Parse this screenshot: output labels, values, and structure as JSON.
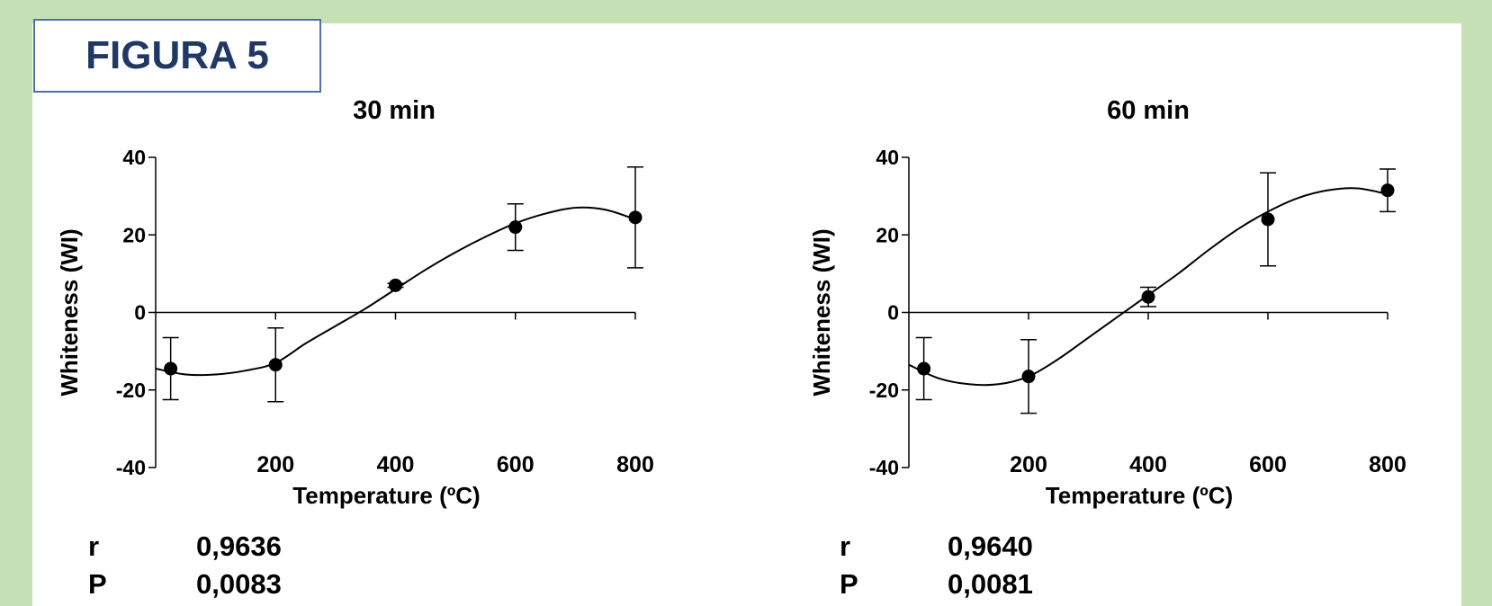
{
  "figure_label": "FIGURA 5",
  "chart_data": [
    {
      "type": "line",
      "title": "30 min",
      "xlabel": "Temperature (ºC)",
      "ylabel": "Whiteness (WI)",
      "xlim": [
        0,
        800
      ],
      "ylim": [
        -40,
        40
      ],
      "xticks": [
        200,
        400,
        600,
        800
      ],
      "yticks": [
        -40,
        -20,
        0,
        20,
        40
      ],
      "points": {
        "x": [
          25,
          200,
          400,
          600,
          800
        ],
        "y": [
          -14.5,
          -13.5,
          7,
          22,
          24.5
        ],
        "err": [
          8,
          9.5,
          0.5,
          6,
          13
        ]
      },
      "fit_curve": {
        "x": [
          0,
          50,
          100,
          150,
          200,
          250,
          300,
          350,
          400,
          450,
          500,
          550,
          600,
          650,
          700,
          750,
          800
        ],
        "y": [
          -14.5,
          -16,
          -16,
          -15,
          -13,
          -8,
          -3.5,
          1,
          6,
          11,
          15.5,
          19.5,
          23,
          25.5,
          27,
          26.5,
          24
        ]
      },
      "stats": [
        {
          "key": "r",
          "value": "0,9636"
        },
        {
          "key": "P",
          "value": "0,0083"
        }
      ]
    },
    {
      "type": "line",
      "title": "60 min",
      "xlabel": "Temperature (ºC)",
      "ylabel": "Whiteness (WI)",
      "xlim": [
        0,
        800
      ],
      "ylim": [
        -40,
        40
      ],
      "xticks": [
        200,
        400,
        600,
        800
      ],
      "yticks": [
        -40,
        -20,
        0,
        20,
        40
      ],
      "points": {
        "x": [
          25,
          200,
          400,
          600,
          800
        ],
        "y": [
          -14.5,
          -16.5,
          4,
          24,
          31.5
        ],
        "err": [
          8,
          9.5,
          2.5,
          12,
          5.5
        ]
      },
      "fit_curve": {
        "x": [
          0,
          50,
          100,
          150,
          200,
          250,
          300,
          350,
          400,
          450,
          500,
          550,
          600,
          650,
          700,
          750,
          800
        ],
        "y": [
          -13.5,
          -17,
          -18.5,
          -18.5,
          -16.5,
          -12,
          -6.5,
          -1,
          4.5,
          10,
          16,
          21.5,
          26,
          29.5,
          31.5,
          32,
          30.5
        ]
      },
      "stats": [
        {
          "key": "r",
          "value": "0,9640"
        },
        {
          "key": "P",
          "value": "0,0081"
        }
      ]
    }
  ]
}
